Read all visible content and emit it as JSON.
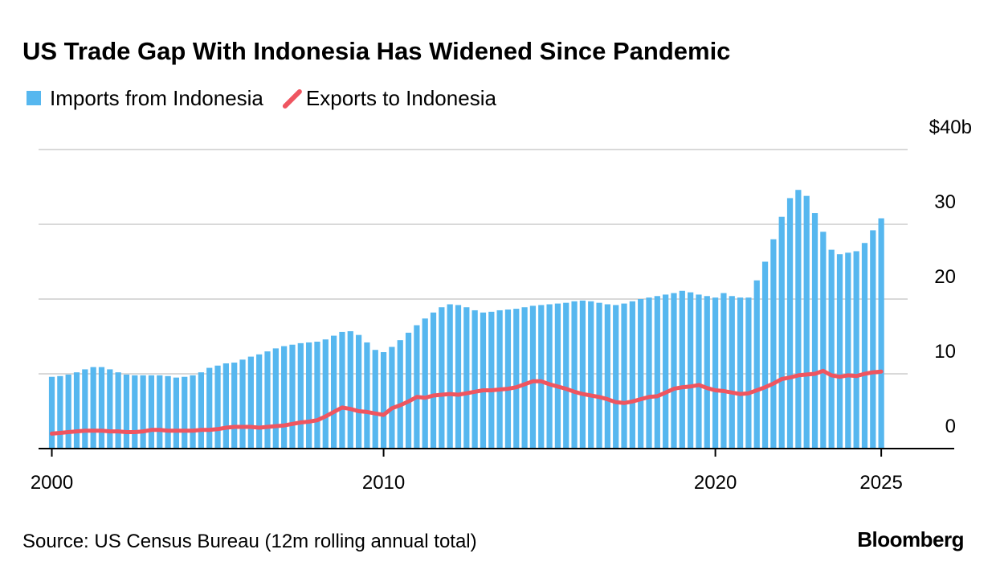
{
  "chart_data": {
    "type": "bar",
    "title": "US Trade Gap With Indonesia Has Widened Since Pandemic",
    "source": "Source: US Census Bureau (12m rolling annual total)",
    "logo": "Bloomberg",
    "x": [
      2000,
      2000.25,
      2000.5,
      2000.75,
      2001,
      2001.25,
      2001.5,
      2001.75,
      2002,
      2002.25,
      2002.5,
      2002.75,
      2003,
      2003.25,
      2003.5,
      2003.75,
      2004,
      2004.25,
      2004.5,
      2004.75,
      2005,
      2005.25,
      2005.5,
      2005.75,
      2006,
      2006.25,
      2006.5,
      2006.75,
      2007,
      2007.25,
      2007.5,
      2007.75,
      2008,
      2008.25,
      2008.5,
      2008.75,
      2009,
      2009.25,
      2009.5,
      2009.75,
      2010,
      2010.25,
      2010.5,
      2010.75,
      2011,
      2011.25,
      2011.5,
      2011.75,
      2012,
      2012.25,
      2012.5,
      2012.75,
      2013,
      2013.25,
      2013.5,
      2013.75,
      2014,
      2014.25,
      2014.5,
      2014.75,
      2015,
      2015.25,
      2015.5,
      2015.75,
      2016,
      2016.25,
      2016.5,
      2016.75,
      2017,
      2017.25,
      2017.5,
      2017.75,
      2018,
      2018.25,
      2018.5,
      2018.75,
      2019,
      2019.25,
      2019.5,
      2019.75,
      2020,
      2020.25,
      2020.5,
      2020.75,
      2021,
      2021.25,
      2021.5,
      2021.75,
      2022,
      2022.25,
      2022.5,
      2022.75,
      2023,
      2023.25,
      2023.5,
      2023.75,
      2024,
      2024.25,
      2024.5,
      2024.75,
      2025
    ],
    "series": [
      {
        "name": "Imports from Indonesia",
        "type": "bar",
        "color": "#56b7ef",
        "values": [
          9.6,
          9.7,
          9.9,
          10.2,
          10.6,
          10.9,
          10.9,
          10.6,
          10.2,
          9.9,
          9.8,
          9.8,
          9.8,
          9.8,
          9.7,
          9.5,
          9.6,
          9.8,
          10.2,
          10.8,
          11.1,
          11.4,
          11.5,
          11.9,
          12.3,
          12.6,
          13.0,
          13.4,
          13.7,
          13.9,
          14.1,
          14.2,
          14.3,
          14.6,
          15.1,
          15.6,
          15.7,
          15.2,
          14.2,
          13.2,
          12.9,
          13.6,
          14.5,
          15.5,
          16.5,
          17.4,
          18.2,
          18.9,
          19.3,
          19.2,
          18.9,
          18.5,
          18.2,
          18.3,
          18.5,
          18.6,
          18.7,
          18.9,
          19.1,
          19.2,
          19.3,
          19.4,
          19.5,
          19.7,
          19.8,
          19.7,
          19.5,
          19.3,
          19.2,
          19.4,
          19.7,
          20.0,
          20.2,
          20.4,
          20.6,
          20.8,
          21.1,
          20.9,
          20.6,
          20.4,
          20.2,
          20.8,
          20.4,
          20.2,
          20.2,
          22.5,
          25.0,
          28.0,
          31.0,
          33.5,
          34.6,
          33.8,
          31.5,
          29.0,
          26.6,
          26.0,
          26.2,
          26.4,
          27.5,
          29.2,
          30.8
        ]
      },
      {
        "name": "Exports to Indonesia",
        "type": "line",
        "color": "#ef5560",
        "values": [
          2.0,
          2.1,
          2.2,
          2.3,
          2.4,
          2.4,
          2.4,
          2.3,
          2.3,
          2.2,
          2.2,
          2.3,
          2.5,
          2.5,
          2.4,
          2.4,
          2.4,
          2.4,
          2.5,
          2.5,
          2.6,
          2.8,
          2.9,
          2.9,
          2.9,
          2.8,
          2.9,
          3.0,
          3.1,
          3.3,
          3.5,
          3.6,
          3.8,
          4.3,
          4.9,
          5.5,
          5.3,
          5.0,
          4.9,
          4.7,
          4.5,
          5.4,
          5.8,
          6.3,
          6.9,
          6.8,
          7.1,
          7.2,
          7.3,
          7.2,
          7.4,
          7.6,
          7.8,
          7.8,
          7.9,
          8.0,
          8.2,
          8.6,
          9.0,
          9.0,
          8.6,
          8.3,
          8.0,
          7.6,
          7.3,
          7.1,
          6.9,
          6.6,
          6.2,
          6.1,
          6.3,
          6.6,
          6.9,
          7.0,
          7.5,
          8.0,
          8.2,
          8.3,
          8.5,
          8.1,
          7.8,
          7.7,
          7.5,
          7.3,
          7.4,
          7.8,
          8.2,
          8.7,
          9.3,
          9.5,
          9.8,
          9.9,
          10.0,
          10.4,
          9.8,
          9.6,
          9.8,
          9.7,
          10.0,
          10.2,
          10.3
        ]
      }
    ],
    "xlim": [
      1999.6,
      2027.2
    ],
    "xticks": [
      2000,
      2010,
      2020,
      2025
    ],
    "ylim": [
      0,
      40
    ],
    "yticks": [
      0,
      10,
      20,
      30,
      {
        "value": 40,
        "label": "$40b"
      }
    ],
    "grid": true
  }
}
